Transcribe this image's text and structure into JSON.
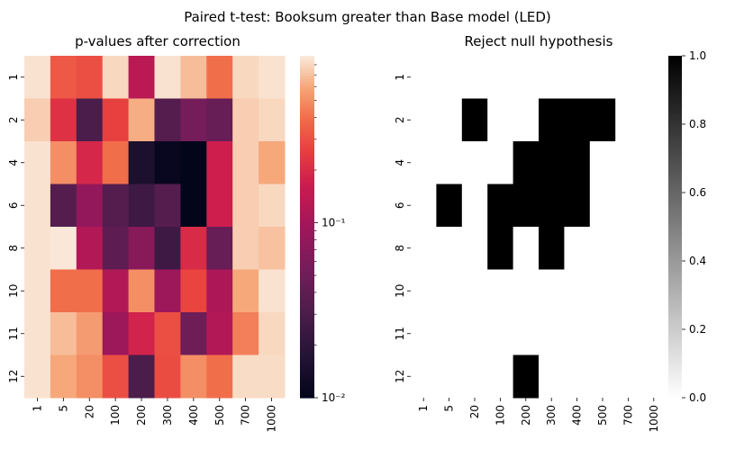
{
  "figure": {
    "suptitle": "Paired t-test: Booksum greater than Base model (LED)"
  },
  "chart_data": [
    {
      "type": "heatmap",
      "title": "p-values after correction",
      "xlabel": "",
      "ylabel": "",
      "x_categories": [
        "1",
        "5",
        "20",
        "100",
        "200",
        "300",
        "400",
        "500",
        "700",
        "1000"
      ],
      "y_categories": [
        "1",
        "2",
        "4",
        "6",
        "8",
        "10",
        "11",
        "12"
      ],
      "color_scale": "log",
      "colormap": "rocket",
      "vmin": 0.01,
      "vmax": 0.9,
      "colorbar_ticks": [
        {
          "value": 0.1,
          "label": "10⁻¹"
        },
        {
          "value": 0.01,
          "label": "10⁻²"
        }
      ],
      "values": [
        [
          0.85,
          0.33,
          0.3,
          0.8,
          0.13,
          0.85,
          0.68,
          0.4,
          0.8,
          0.85
        ],
        [
          0.75,
          0.22,
          0.03,
          0.26,
          0.62,
          0.035,
          0.055,
          0.045,
          0.75,
          0.8
        ],
        [
          0.85,
          0.5,
          0.19,
          0.4,
          0.015,
          0.011,
          0.01,
          0.17,
          0.75,
          0.6
        ],
        [
          0.85,
          0.035,
          0.08,
          0.035,
          0.025,
          0.035,
          0.01,
          0.17,
          0.75,
          0.8
        ],
        [
          0.85,
          0.88,
          0.12,
          0.04,
          0.07,
          0.025,
          0.2,
          0.045,
          0.75,
          0.7
        ],
        [
          0.85,
          0.4,
          0.4,
          0.12,
          0.5,
          0.09,
          0.27,
          0.11,
          0.6,
          0.85
        ],
        [
          0.85,
          0.68,
          0.55,
          0.09,
          0.18,
          0.3,
          0.05,
          0.12,
          0.45,
          0.8
        ],
        [
          0.85,
          0.6,
          0.5,
          0.3,
          0.03,
          0.29,
          0.5,
          0.4,
          0.82,
          0.82
        ]
      ]
    },
    {
      "type": "heatmap",
      "title": "Reject null hypothesis",
      "xlabel": "",
      "ylabel": "",
      "x_categories": [
        "1",
        "5",
        "20",
        "100",
        "200",
        "300",
        "400",
        "500",
        "700",
        "1000"
      ],
      "y_categories": [
        "1",
        "2",
        "4",
        "6",
        "8",
        "10",
        "11",
        "12"
      ],
      "color_scale": "linear",
      "colormap": "Greys",
      "vmin": 0.0,
      "vmax": 1.0,
      "colorbar_ticks": [
        {
          "value": 0.0,
          "label": "0.0"
        },
        {
          "value": 0.2,
          "label": "0.2"
        },
        {
          "value": 0.4,
          "label": "0.4"
        },
        {
          "value": 0.6,
          "label": "0.6"
        },
        {
          "value": 0.8,
          "label": "0.8"
        },
        {
          "value": 1.0,
          "label": "1.0"
        }
      ],
      "values": [
        [
          0,
          0,
          0,
          0,
          0,
          0,
          0,
          0,
          0,
          0
        ],
        [
          0,
          0,
          1,
          0,
          0,
          1,
          1,
          1,
          0,
          0
        ],
        [
          0,
          0,
          0,
          0,
          1,
          1,
          1,
          0,
          0,
          0
        ],
        [
          0,
          1,
          0,
          1,
          1,
          1,
          1,
          0,
          0,
          0
        ],
        [
          0,
          0,
          0,
          1,
          0,
          1,
          0,
          0,
          0,
          0
        ],
        [
          0,
          0,
          0,
          0,
          0,
          0,
          0,
          0,
          0,
          0
        ],
        [
          0,
          0,
          0,
          0,
          0,
          0,
          0,
          0,
          0,
          0
        ],
        [
          0,
          0,
          0,
          0,
          1,
          0,
          0,
          0,
          0,
          0
        ]
      ]
    }
  ]
}
